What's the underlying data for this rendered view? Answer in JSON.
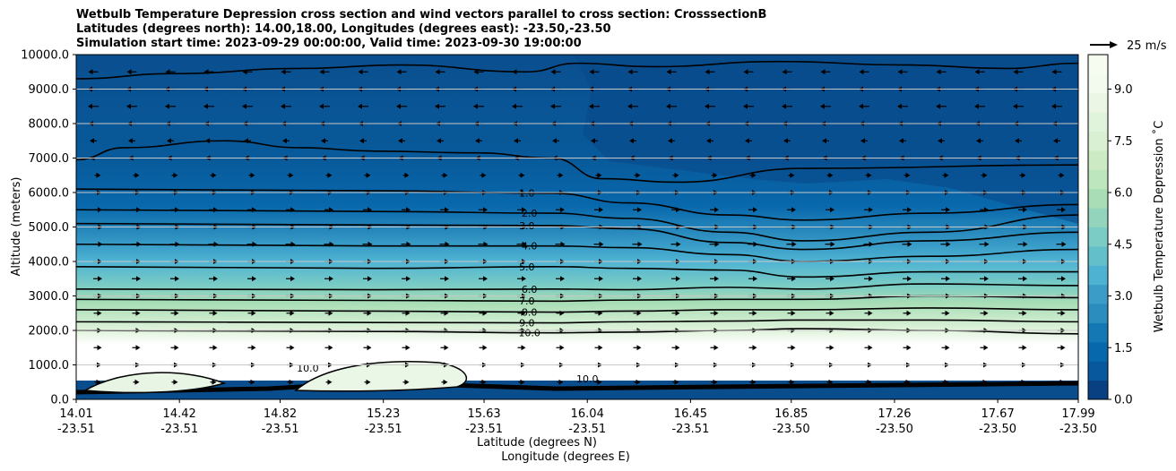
{
  "titles": {
    "line1": "Wetbulb Temperature Depression cross section and wind vectors parallel to cross section: CrosssectionB",
    "line2": "Latitudes (degrees north): 14.00,18.00, Longitudes (degrees east): -23.50,-23.50",
    "line3": "Simulation start time: 2023-09-29 00:00:00, Valid time: 2023-09-30 19:00:00"
  },
  "quiver_key_label": "25 m/s",
  "chart_data": {
    "type": "heatmap",
    "ylabel": "Altitude (meters)",
    "xlabel_lat": "Latitude (degrees N)",
    "xlabel_lon": "Longitude (degrees E)",
    "colorbar_label": "Wetbulb Temperature Depression ˚C",
    "colormap": "GnBu_r",
    "ylim": [
      0,
      10000
    ],
    "y_ticks": [
      "0.0",
      "1000.0",
      "2000.0",
      "3000.0",
      "4000.0",
      "5000.0",
      "6000.0",
      "7000.0",
      "8000.0",
      "9000.0",
      "10000.0"
    ],
    "y_tick_values": [
      0,
      1000,
      2000,
      3000,
      4000,
      5000,
      6000,
      7000,
      8000,
      9000,
      10000
    ],
    "x_ticks": [
      {
        "lat": "14.01",
        "lon": "-23.51"
      },
      {
        "lat": "14.42",
        "lon": "-23.51"
      },
      {
        "lat": "14.82",
        "lon": "-23.51"
      },
      {
        "lat": "15.23",
        "lon": "-23.51"
      },
      {
        "lat": "15.63",
        "lon": "-23.51"
      },
      {
        "lat": "16.04",
        "lon": "-23.51"
      },
      {
        "lat": "16.45",
        "lon": "-23.51"
      },
      {
        "lat": "16.85",
        "lon": "-23.50"
      },
      {
        "lat": "17.26",
        "lon": "-23.50"
      },
      {
        "lat": "17.67",
        "lon": "-23.50"
      },
      {
        "lat": "17.99",
        "lon": "-23.50"
      }
    ],
    "x_tick_values": [
      14.01,
      14.42,
      14.82,
      15.23,
      15.63,
      16.04,
      16.45,
      16.85,
      17.26,
      17.67,
      17.99
    ],
    "xlim": [
      14.01,
      17.99
    ],
    "colorbar_range": [
      0,
      10
    ],
    "colorbar_ticks": [
      "0.0",
      "1.5",
      "3.0",
      "4.5",
      "6.0",
      "7.5",
      "9.0"
    ],
    "colorbar_tick_values": [
      0,
      1.5,
      3,
      4.5,
      6,
      7.5,
      9
    ],
    "contour_labels": [
      "1.0",
      "2.0",
      "3.0",
      "4.0",
      "5.0",
      "6.0",
      "7.0",
      "8.0",
      "9.0",
      "10.0"
    ],
    "contour_levels": [
      {
        "level": 1.0,
        "label": "1.0",
        "profile": [
          [
            14.01,
            6100
          ],
          [
            15.2,
            6050
          ],
          [
            15.9,
            5980
          ],
          [
            16.2,
            5700
          ],
          [
            16.6,
            5350
          ],
          [
            16.9,
            5200
          ],
          [
            17.4,
            5400
          ],
          [
            17.99,
            5650
          ]
        ]
      },
      {
        "level": 2.0,
        "label": "2.0",
        "profile": [
          [
            14.01,
            5500
          ],
          [
            15.2,
            5450
          ],
          [
            15.9,
            5400
          ],
          [
            16.2,
            5250
          ],
          [
            16.6,
            4850
          ],
          [
            16.9,
            4600
          ],
          [
            17.4,
            4850
          ],
          [
            17.99,
            5350
          ]
        ]
      },
      {
        "level": 3.0,
        "label": "3.0",
        "profile": [
          [
            14.01,
            5100
          ],
          [
            15.2,
            5060
          ],
          [
            15.9,
            5040
          ],
          [
            16.2,
            4950
          ],
          [
            16.6,
            4550
          ],
          [
            16.9,
            4350
          ],
          [
            17.4,
            4600
          ],
          [
            17.99,
            4850
          ]
        ]
      },
      {
        "level": 4.0,
        "label": "4.0",
        "profile": [
          [
            14.01,
            4500
          ],
          [
            15.2,
            4450
          ],
          [
            15.9,
            4450
          ],
          [
            16.2,
            4400
          ],
          [
            16.6,
            4200
          ],
          [
            16.9,
            4000
          ],
          [
            17.4,
            4150
          ],
          [
            17.99,
            4350
          ]
        ]
      },
      {
        "level": 5.0,
        "label": "5.0",
        "profile": [
          [
            14.01,
            3850
          ],
          [
            15.2,
            3800
          ],
          [
            15.9,
            3850
          ],
          [
            16.2,
            3800
          ],
          [
            16.6,
            3750
          ],
          [
            16.9,
            3550
          ],
          [
            17.4,
            3700
          ],
          [
            17.99,
            3700
          ]
        ]
      },
      {
        "level": 6.0,
        "label": "6.0",
        "profile": [
          [
            14.01,
            3200
          ],
          [
            15.2,
            3180
          ],
          [
            15.9,
            3200
          ],
          [
            16.2,
            3180
          ],
          [
            16.6,
            3250
          ],
          [
            16.9,
            3200
          ],
          [
            17.4,
            3350
          ],
          [
            17.99,
            3300
          ]
        ]
      },
      {
        "level": 7.0,
        "label": "7.0",
        "profile": [
          [
            14.01,
            2900
          ],
          [
            15.2,
            2870
          ],
          [
            15.9,
            2850
          ],
          [
            16.2,
            2880
          ],
          [
            16.6,
            2900
          ],
          [
            16.9,
            2900
          ],
          [
            17.4,
            3000
          ],
          [
            17.99,
            2950
          ]
        ]
      },
      {
        "level": 8.0,
        "label": "8.0",
        "profile": [
          [
            14.01,
            2600
          ],
          [
            15.2,
            2560
          ],
          [
            15.9,
            2530
          ],
          [
            16.2,
            2560
          ],
          [
            16.6,
            2600
          ],
          [
            16.9,
            2600
          ],
          [
            17.4,
            2650
          ],
          [
            17.99,
            2600
          ]
        ]
      },
      {
        "level": 9.0,
        "label": "9.0",
        "profile": [
          [
            14.01,
            2250
          ],
          [
            15.2,
            2230
          ],
          [
            15.9,
            2220
          ],
          [
            16.2,
            2250
          ],
          [
            16.6,
            2270
          ],
          [
            16.9,
            2300
          ],
          [
            17.4,
            2300
          ],
          [
            17.99,
            2250
          ]
        ]
      },
      {
        "level": 10.0,
        "label": "10.0",
        "profile": [
          [
            14.01,
            2000
          ],
          [
            15.2,
            1970
          ],
          [
            15.9,
            1930
          ],
          [
            16.2,
            1950
          ],
          [
            16.6,
            2000
          ],
          [
            16.9,
            2050
          ],
          [
            17.4,
            2000
          ],
          [
            17.99,
            1900
          ]
        ]
      }
    ],
    "upper_contour_1": {
      "level": 1.0,
      "profile": [
        [
          14.01,
          6950
        ],
        [
          14.2,
          7300
        ],
        [
          14.6,
          7500
        ],
        [
          14.9,
          7300
        ],
        [
          15.2,
          7200
        ],
        [
          15.6,
          7150
        ],
        [
          15.9,
          7000
        ],
        [
          16.1,
          6400
        ],
        [
          16.4,
          6300
        ],
        [
          16.9,
          6700
        ],
        [
          17.99,
          6800
        ]
      ]
    },
    "wind_vectors": {
      "levels_m": [
        9500,
        9000,
        8500,
        8000,
        7500,
        7000,
        6500,
        6000,
        5500,
        5000,
        4500,
        4000,
        3500,
        3000,
        2500,
        2000,
        1500,
        1000,
        500
      ],
      "u_ms": [
        -6,
        -7,
        -7,
        -5,
        -3,
        -1,
        1,
        3,
        5,
        6,
        6,
        5,
        5,
        5,
        4,
        4,
        4,
        3,
        2
      ]
    },
    "quiver_key": {
      "speed_ms": 25,
      "label": "25 m/s"
    }
  }
}
